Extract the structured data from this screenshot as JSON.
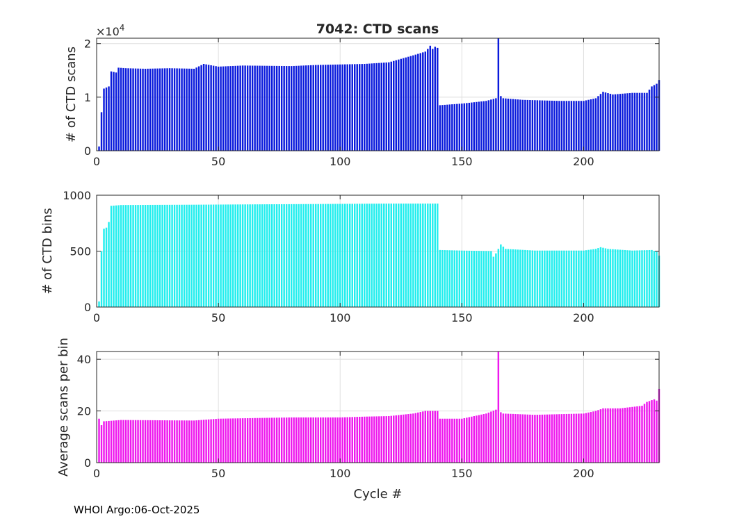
{
  "title": "7042: CTD scans",
  "footer": "WHOI Argo:06-Oct-2025",
  "colors": {
    "scans": "#0a1adc",
    "bins": "#22eeee",
    "avg": "#ee18ee",
    "grid": "#dedede",
    "axis": "#262626"
  },
  "chart_data": [
    {
      "type": "bar",
      "ylabel": "# of CTD scans",
      "xlabel": "",
      "xlim": [
        0,
        231
      ],
      "ylim": [
        0,
        2.1
      ],
      "x_ticks": [
        "0",
        "50",
        "100",
        "150",
        "200"
      ],
      "y_ticks": [
        "0",
        "1",
        "2"
      ],
      "y_tick_values": [
        0,
        1,
        2
      ],
      "exponent_label": "×10",
      "exponent_power": "4",
      "series": [
        {
          "name": "# of CTD scans (×10^4)",
          "anchors": [
            [
              1,
              0.08
            ],
            [
              2,
              0.72
            ],
            [
              3,
              1.16
            ],
            [
              5,
              1.2
            ],
            [
              6,
              1.48
            ],
            [
              8,
              1.46
            ],
            [
              9,
              1.55
            ],
            [
              12,
              1.54
            ],
            [
              20,
              1.53
            ],
            [
              30,
              1.54
            ],
            [
              40,
              1.53
            ],
            [
              44,
              1.62
            ],
            [
              50,
              1.57
            ],
            [
              60,
              1.59
            ],
            [
              80,
              1.58
            ],
            [
              90,
              1.6
            ],
            [
              100,
              1.61
            ],
            [
              110,
              1.62
            ],
            [
              120,
              1.65
            ],
            [
              130,
              1.78
            ],
            [
              135,
              1.85
            ],
            [
              136,
              1.9
            ],
            [
              137,
              1.96
            ],
            [
              138,
              1.9
            ],
            [
              139,
              1.94
            ],
            [
              140,
              1.92
            ],
            [
              141,
              0.85
            ],
            [
              150,
              0.88
            ],
            [
              160,
              0.93
            ],
            [
              164,
              0.98
            ],
            [
              165,
              2.1
            ],
            [
              166,
              1.02
            ],
            [
              167,
              0.98
            ],
            [
              175,
              0.95
            ],
            [
              190,
              0.93
            ],
            [
              200,
              0.93
            ],
            [
              205,
              0.98
            ],
            [
              208,
              1.1
            ],
            [
              212,
              1.05
            ],
            [
              220,
              1.08
            ],
            [
              226,
              1.08
            ],
            [
              228,
              1.2
            ],
            [
              230,
              1.25
            ],
            [
              231,
              1.32
            ]
          ]
        }
      ]
    },
    {
      "type": "bar",
      "ylabel": "# of CTD bins",
      "xlabel": "",
      "xlim": [
        0,
        231
      ],
      "ylim": [
        0,
        1000
      ],
      "x_ticks": [
        "0",
        "50",
        "100",
        "150",
        "200"
      ],
      "y_ticks": [
        "0",
        "500",
        "1000"
      ],
      "y_tick_values": [
        0,
        500,
        1000
      ],
      "series": [
        {
          "name": "# of CTD bins",
          "anchors": [
            [
              1,
              50
            ],
            [
              2,
              500
            ],
            [
              3,
              700
            ],
            [
              4,
              710
            ],
            [
              5,
              760
            ],
            [
              6,
              905
            ],
            [
              10,
              912
            ],
            [
              40,
              915
            ],
            [
              80,
              920
            ],
            [
              120,
              925
            ],
            [
              139,
              925
            ],
            [
              140,
              925
            ],
            [
              141,
              510
            ],
            [
              150,
              505
            ],
            [
              162,
              500
            ],
            [
              163,
              450
            ],
            [
              164,
              480
            ],
            [
              165,
              520
            ],
            [
              166,
              560
            ],
            [
              168,
              520
            ],
            [
              180,
              505
            ],
            [
              200,
              505
            ],
            [
              205,
              520
            ],
            [
              207,
              535
            ],
            [
              210,
              520
            ],
            [
              220,
              505
            ],
            [
              228,
              510
            ],
            [
              230,
              495
            ],
            [
              231,
              460
            ]
          ]
        }
      ]
    },
    {
      "type": "bar",
      "ylabel": "Average scans per bin",
      "xlabel": "Cycle #",
      "xlim": [
        0,
        231
      ],
      "ylim": [
        0,
        43
      ],
      "x_ticks": [
        "0",
        "50",
        "100",
        "150",
        "200"
      ],
      "y_ticks": [
        "0",
        "20",
        "40"
      ],
      "y_tick_values": [
        0,
        20,
        40
      ],
      "series": [
        {
          "name": "Average scans per bin",
          "anchors": [
            [
              1,
              17
            ],
            [
              2,
              14.5
            ],
            [
              3,
              16
            ],
            [
              10,
              16.5
            ],
            [
              40,
              16.3
            ],
            [
              50,
              17
            ],
            [
              80,
              17.5
            ],
            [
              100,
              17.5
            ],
            [
              110,
              17.8
            ],
            [
              120,
              18
            ],
            [
              130,
              19
            ],
            [
              135,
              20
            ],
            [
              140,
              20
            ],
            [
              141,
              17
            ],
            [
              150,
              17
            ],
            [
              160,
              19
            ],
            [
              164,
              20.5
            ],
            [
              165,
              43
            ],
            [
              166,
              19.5
            ],
            [
              167,
              19
            ],
            [
              180,
              18.5
            ],
            [
              200,
              19
            ],
            [
              205,
              20
            ],
            [
              208,
              21
            ],
            [
              215,
              21
            ],
            [
              224,
              22
            ],
            [
              226,
              23.5
            ],
            [
              229,
              24.5
            ],
            [
              230,
              24
            ],
            [
              231,
              28.5
            ]
          ]
        }
      ]
    }
  ]
}
